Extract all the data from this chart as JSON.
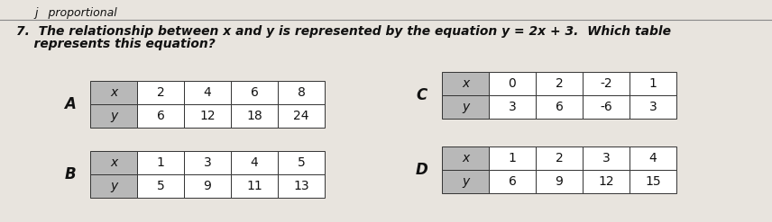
{
  "header_text": "j   proportional",
  "title_line1": "7.  The relationship between x and y is represented by the equation y = 2x + 3.  Which table",
  "title_line2": "    represents this equation?",
  "table_A": {
    "label": "A",
    "x_vals": [
      "x",
      "2",
      "4",
      "6",
      "8"
    ],
    "y_vals": [
      "y",
      "6",
      "12",
      "18",
      "24"
    ]
  },
  "table_B": {
    "label": "B",
    "x_vals": [
      "x",
      "1",
      "3",
      "4",
      "5"
    ],
    "y_vals": [
      "y",
      "5",
      "9",
      "11",
      "13"
    ]
  },
  "table_C": {
    "label": "C",
    "x_vals": [
      "x",
      "0",
      "2",
      "-2",
      "1"
    ],
    "y_vals": [
      "y",
      "3",
      "6",
      "-6",
      "3"
    ]
  },
  "table_D": {
    "label": "D",
    "x_vals": [
      "x",
      "1",
      "2",
      "3",
      "4"
    ],
    "y_vals": [
      "y",
      "6",
      "9",
      "12",
      "15"
    ]
  },
  "header_color": "#b8b8b8",
  "cell_color": "#ffffff",
  "border_color": "#333333",
  "bg_color": "#e8e4de",
  "text_color": "#111111",
  "header_fontsize": 9,
  "title_fontsize": 10,
  "label_fontsize": 12,
  "cell_fontsize": 10
}
